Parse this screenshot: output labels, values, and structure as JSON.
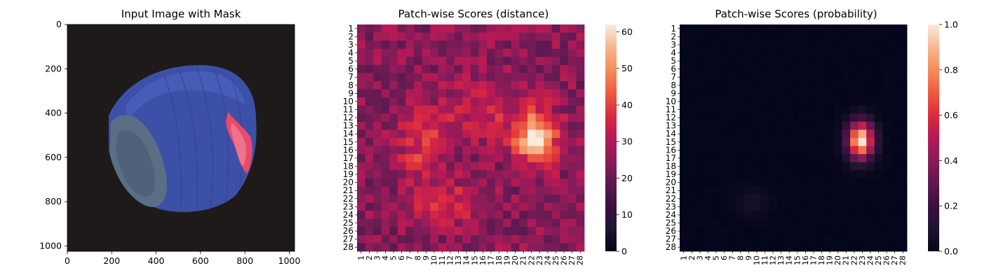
{
  "chart_data": [
    {
      "type": "image",
      "title": "Input Image with Mask",
      "xlim": [
        0,
        1024
      ],
      "ylim": [
        1024,
        0
      ],
      "xticks": [
        0,
        200,
        400,
        600,
        800,
        1000
      ],
      "yticks": [
        0,
        200,
        400,
        600,
        800,
        1000
      ],
      "image": {
        "background": "#1e1a19",
        "object_color": "#3d50a8",
        "object_center": [
          500,
          530
        ],
        "object_radius": [
          340,
          330
        ],
        "cut_face_color": "#5a6e86",
        "mask_color": "#e84a6a",
        "mask_region": [
          [
            740,
            400
          ],
          [
            800,
            450
          ],
          [
            830,
            520
          ],
          [
            820,
            620
          ],
          [
            780,
            660
          ],
          [
            740,
            590
          ],
          [
            720,
            480
          ]
        ]
      }
    },
    {
      "type": "heatmap",
      "title": "Patch-wise Scores (distance)",
      "x_ticklabels": [
        "1",
        "2",
        "3",
        "4",
        "5",
        "6",
        "7",
        "8",
        "9",
        "10",
        "11",
        "12",
        "13",
        "14",
        "15",
        "16",
        "17",
        "18",
        "19",
        "20",
        "21",
        "22",
        "23",
        "24",
        "25",
        "26",
        "27",
        "28"
      ],
      "y_ticklabels": [
        "1",
        "2",
        "3",
        "4",
        "5",
        "6",
        "7",
        "8",
        "9",
        "10",
        "11",
        "12",
        "13",
        "14",
        "15",
        "16",
        "17",
        "18",
        "19",
        "20",
        "21",
        "22",
        "23",
        "24",
        "25",
        "26",
        "27",
        "28"
      ],
      "colorscale": "rocket",
      "vmin": 0,
      "vmax": 62,
      "colorbar_ticks": [
        0,
        10,
        20,
        30,
        40,
        50,
        60
      ],
      "background_level": 25,
      "blobs": [
        {
          "row": 14.5,
          "col": 22.5,
          "sigma_r": 2.2,
          "sigma_c": 1.8,
          "amp": 35
        },
        {
          "row": 15.5,
          "col": 8.5,
          "sigma_r": 3.0,
          "sigma_c": 2.0,
          "amp": 13
        },
        {
          "row": 22.5,
          "col": 11.5,
          "sigma_r": 1.6,
          "sigma_c": 2.5,
          "amp": 13
        },
        {
          "row": 11.0,
          "col": 16.0,
          "sigma_r": 2.5,
          "sigma_c": 3.5,
          "amp": 10
        }
      ]
    },
    {
      "type": "heatmap",
      "title": "Patch-wise Scores (probability)",
      "x_ticklabels": [
        "1",
        "2",
        "3",
        "4",
        "5",
        "6",
        "7",
        "8",
        "9",
        "10",
        "11",
        "12",
        "13",
        "14",
        "15",
        "16",
        "17",
        "18",
        "19",
        "20",
        "21",
        "22",
        "23",
        "24",
        "25",
        "26",
        "27",
        "28"
      ],
      "y_ticklabels": [
        "1",
        "2",
        "3",
        "4",
        "5",
        "6",
        "7",
        "8",
        "9",
        "10",
        "11",
        "12",
        "13",
        "14",
        "15",
        "16",
        "17",
        "18",
        "19",
        "20",
        "21",
        "22",
        "23",
        "24",
        "25",
        "26",
        "27",
        "28"
      ],
      "colorscale": "rocket",
      "vmin": 0.0,
      "vmax": 1.0,
      "colorbar_ticks": [
        "0.0",
        "0.2",
        "0.4",
        "0.6",
        "0.8",
        "1.0"
      ],
      "background_level": 0.0,
      "blobs": [
        {
          "row": 14.8,
          "col": 22.8,
          "sigma_r": 1.6,
          "sigma_c": 1.1,
          "amp": 1.0
        },
        {
          "row": 22.5,
          "col": 9.5,
          "sigma_r": 1.2,
          "sigma_c": 1.5,
          "amp": 0.07
        }
      ]
    }
  ]
}
